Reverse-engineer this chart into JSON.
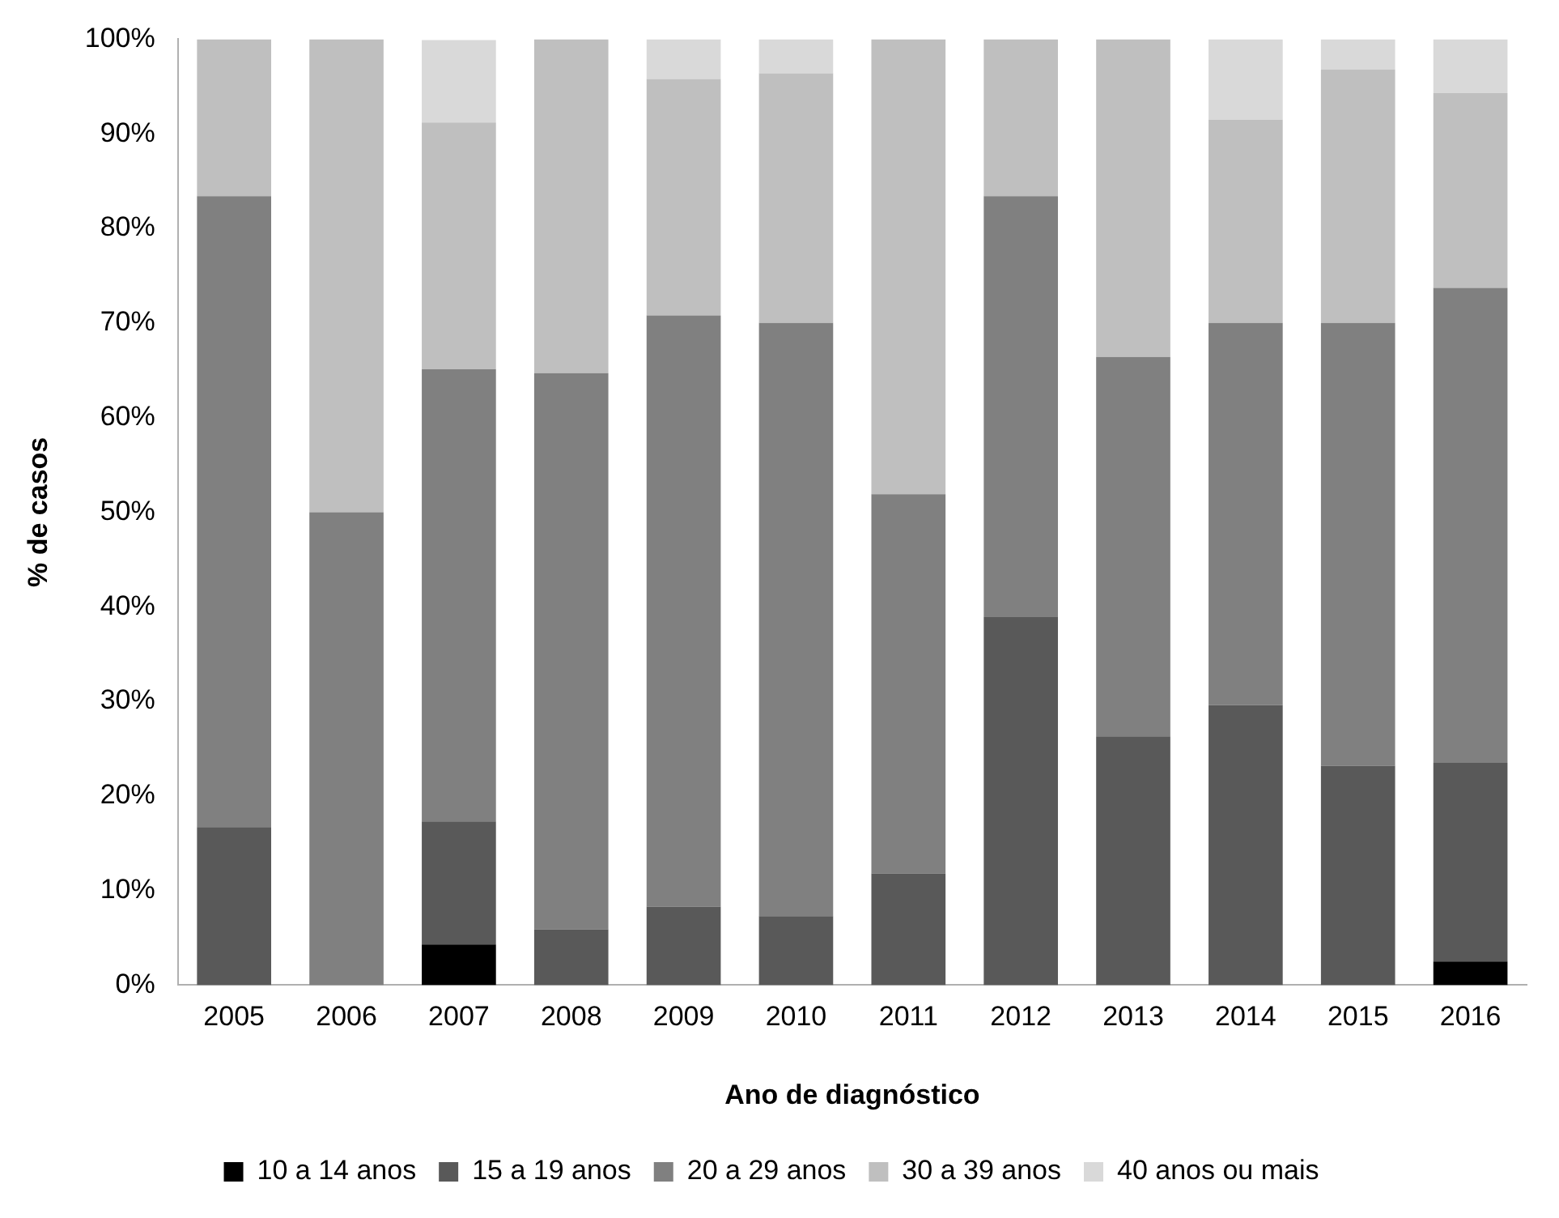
{
  "chart_data": {
    "type": "bar",
    "stacked": true,
    "xlabel": "Ano de diagnóstico",
    "ylabel": "% de casos",
    "categories": [
      "2005",
      "2006",
      "2007",
      "2008",
      "2009",
      "2010",
      "2011",
      "2012",
      "2013",
      "2014",
      "2015",
      "2016"
    ],
    "series": [
      {
        "name": "10 a 14 anos",
        "color": "#000000",
        "values": [
          0,
          0,
          4.3,
          0,
          0,
          0,
          0,
          0,
          0,
          0,
          0,
          2.5
        ]
      },
      {
        "name": "15 a 19 anos",
        "color": "#595959",
        "values": [
          16.7,
          0,
          13.0,
          5.9,
          8.3,
          7.3,
          11.8,
          38.9,
          26.3,
          29.6,
          23.2,
          21.0
        ]
      },
      {
        "name": "20 a 29 anos",
        "color": "#808080",
        "values": [
          66.7,
          50,
          47.8,
          58.8,
          62.5,
          62.7,
          40.1,
          44.5,
          40.1,
          40.4,
          46.8,
          50.2
        ]
      },
      {
        "name": "30 a 39 anos",
        "color": "#bfbfbf",
        "values": [
          16.6,
          50,
          26.1,
          35.3,
          25.0,
          26.4,
          48.1,
          16.6,
          33.6,
          21.5,
          26.8,
          20.6
        ]
      },
      {
        "name": "40 anos ou mais",
        "color": "#d9d9d9",
        "values": [
          0,
          0,
          8.7,
          0,
          4.2,
          3.6,
          0,
          0,
          0,
          8.5,
          3.2,
          5.7
        ]
      }
    ],
    "ylim": [
      0,
      100
    ],
    "yticks": [
      {
        "value": 0,
        "label": "0%"
      },
      {
        "value": 10,
        "label": "10%"
      },
      {
        "value": 20,
        "label": "20%"
      },
      {
        "value": 30,
        "label": "30%"
      },
      {
        "value": 40,
        "label": "40%"
      },
      {
        "value": 50,
        "label": "50%"
      },
      {
        "value": 60,
        "label": "60%"
      },
      {
        "value": 70,
        "label": "70%"
      },
      {
        "value": 80,
        "label": "80%"
      },
      {
        "value": 90,
        "label": "90%"
      },
      {
        "value": 100,
        "label": "100%"
      }
    ],
    "grid": false,
    "legend": "bottom"
  }
}
